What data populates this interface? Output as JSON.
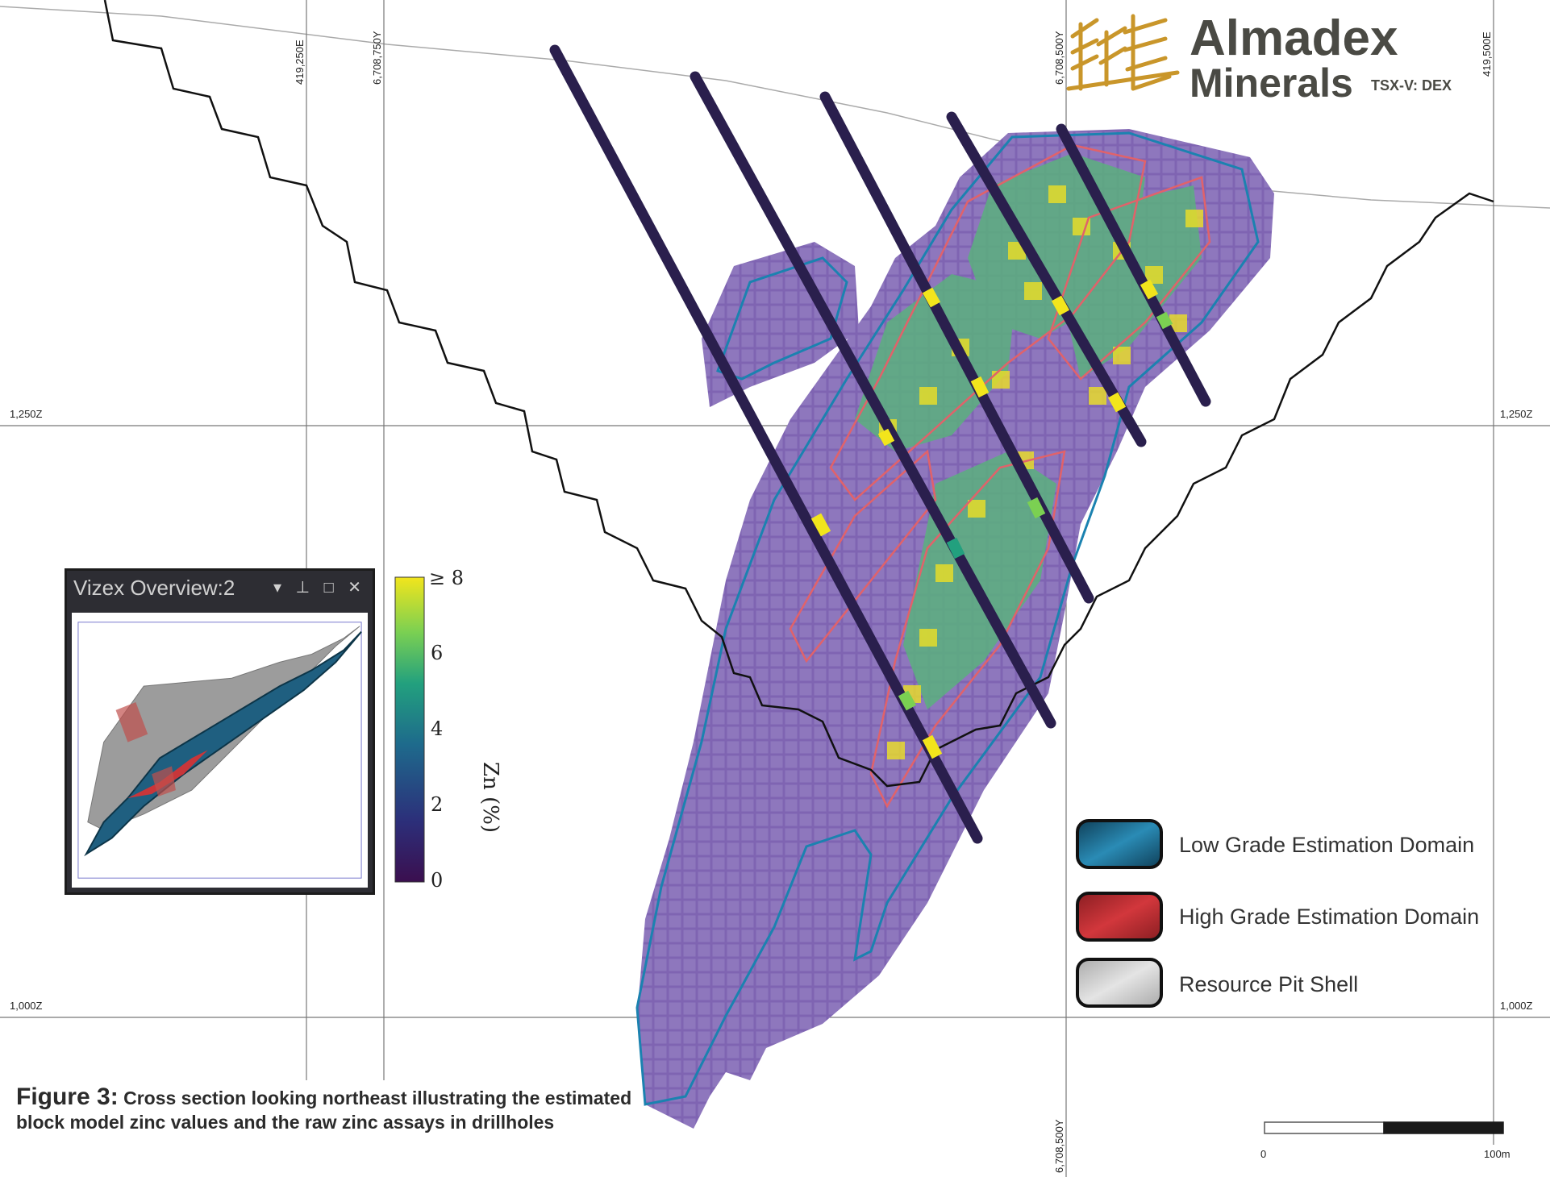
{
  "grid": {
    "vertical_labels": [
      "419,250E",
      "6,708,750Y",
      "6,708,500Y",
      "419,500E"
    ],
    "bottom_label": "6,708,500Y",
    "elevation_labels": [
      "1,250Z",
      "1,000Z"
    ]
  },
  "brand": {
    "name_line1": "Almadex",
    "name_line2": "Minerals",
    "ticker": "TSX-V: DEX"
  },
  "colorbar": {
    "title": "Zn (%)",
    "ticks": [
      "0",
      "2",
      "4",
      "6",
      "≥ 8"
    ],
    "colors": [
      "#3b0f4f",
      "#2c2f7a",
      "#1e6a8c",
      "#22a07e",
      "#7bd052",
      "#f2e51c"
    ]
  },
  "overview_window": {
    "title": "Vizex Overview:2",
    "controls": "▾ ⊥ □ ✕"
  },
  "legend": {
    "items": [
      {
        "label": "Low Grade Estimation Domain",
        "color": "#1a6d93"
      },
      {
        "label": "High Grade Estimation Domain",
        "color": "#b52a2e"
      },
      {
        "label": "Resource Pit Shell",
        "color": "#c8c8c8"
      }
    ]
  },
  "caption": {
    "figure_number": "Figure 3:",
    "text": "Cross section looking northeast illustrating the estimated block model zinc values and the raw zinc assays in drillholes"
  },
  "scale_bar": {
    "start_label": "0",
    "end_label": "100m"
  },
  "colors": {
    "block_purple": "#7d5fae",
    "block_light": "#9a87c4",
    "domain_outline": "#1b82b0",
    "high_grade_outline": "#e1626a",
    "drillhole": "#2a1f4d",
    "pit_line": "#111111",
    "brand_gold": "#c9962a"
  }
}
